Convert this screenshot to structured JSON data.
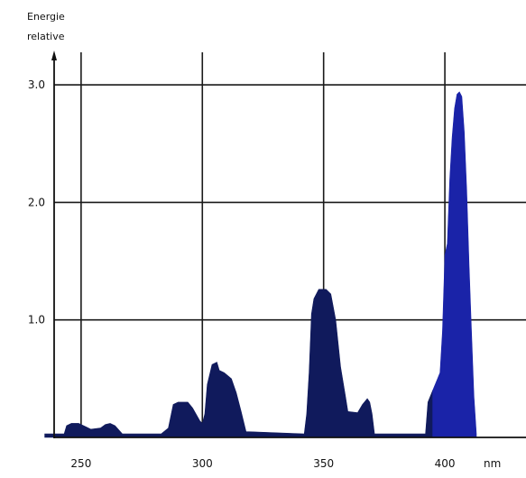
{
  "chart_data": {
    "type": "area",
    "ylabel_line1": "Energie",
    "ylabel_line2": "relative",
    "x_unit": "nm",
    "xlim": [
      235,
      425
    ],
    "ylim": [
      0,
      3.1
    ],
    "x_ticks": [
      250,
      300,
      350,
      400
    ],
    "x_tick_labels": [
      "250",
      "300",
      "350",
      "400"
    ],
    "y_ticks": [
      1.0,
      2.0,
      3.0
    ],
    "y_tick_labels": [
      "1.0",
      "2.0",
      "3.0"
    ],
    "grid": true,
    "series": [
      {
        "color_dark": "#101a5c",
        "points": [
          [
            235,
            0.03
          ],
          [
            243,
            0.03
          ],
          [
            244,
            0.1
          ],
          [
            246,
            0.12
          ],
          [
            249,
            0.12
          ],
          [
            252,
            0.09
          ],
          [
            254,
            0.07
          ],
          [
            258,
            0.08
          ],
          [
            260,
            0.11
          ],
          [
            262,
            0.12
          ],
          [
            264,
            0.1
          ],
          [
            267,
            0.03
          ],
          [
            283,
            0.03
          ],
          [
            286,
            0.08
          ],
          [
            288,
            0.28
          ],
          [
            290,
            0.3
          ],
          [
            294,
            0.3
          ],
          [
            296,
            0.25
          ],
          [
            299,
            0.14
          ],
          [
            300,
            0.12
          ],
          [
            301,
            0.2
          ],
          [
            302,
            0.45
          ],
          [
            304,
            0.62
          ],
          [
            306,
            0.64
          ],
          [
            307,
            0.57
          ],
          [
            309,
            0.55
          ],
          [
            312,
            0.5
          ],
          [
            314,
            0.38
          ],
          [
            316,
            0.22
          ],
          [
            318,
            0.05
          ],
          [
            342,
            0.03
          ],
          [
            343,
            0.2
          ],
          [
            344,
            0.55
          ],
          [
            345,
            1.05
          ],
          [
            346,
            1.18
          ],
          [
            348,
            1.26
          ],
          [
            351,
            1.26
          ],
          [
            353,
            1.22
          ],
          [
            355,
            1.0
          ],
          [
            357,
            0.6
          ],
          [
            359,
            0.35
          ],
          [
            360,
            0.22
          ],
          [
            364,
            0.21
          ],
          [
            366,
            0.28
          ],
          [
            368,
            0.33
          ],
          [
            369,
            0.3
          ],
          [
            370,
            0.2
          ],
          [
            371,
            0.03
          ],
          [
            392,
            0.03
          ],
          [
            393,
            0.3
          ],
          [
            395,
            0.4
          ]
        ]
      },
      {
        "color_bright": "#1a23a8",
        "points": [
          [
            395,
            0.4
          ],
          [
            397,
            0.5
          ],
          [
            398,
            0.55
          ],
          [
            399,
            0.9
          ],
          [
            400,
            1.55
          ],
          [
            401,
            1.65
          ],
          [
            402,
            2.2
          ],
          [
            403,
            2.55
          ],
          [
            404,
            2.8
          ],
          [
            405,
            2.92
          ],
          [
            406,
            2.94
          ],
          [
            407,
            2.9
          ],
          [
            408,
            2.6
          ],
          [
            409,
            2.1
          ],
          [
            410,
            1.45
          ],
          [
            411,
            0.9
          ],
          [
            412,
            0.35
          ],
          [
            413,
            0.03
          ]
        ]
      }
    ]
  }
}
